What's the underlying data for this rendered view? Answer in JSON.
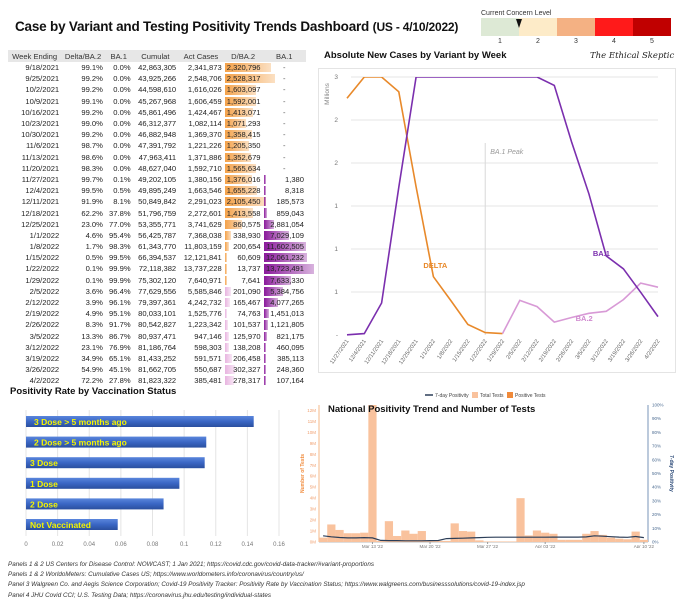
{
  "header": {
    "title": "Case by Variant and Testing Positivity Trends Dashboard",
    "subtitle": "(US - 4/10/2022)"
  },
  "concern_level": {
    "label": "Current Concern Level",
    "levels": [
      "1",
      "2",
      "3",
      "4",
      "5"
    ],
    "colors": [
      "#dde9d5",
      "#fdebc8",
      "#f4b183",
      "#ff1a1a",
      "#c00000"
    ],
    "current_value": 1.5
  },
  "table": {
    "columns": [
      "Week Ending",
      "Delta/BA.2",
      "BA.1",
      "Cumulat",
      "Act Cases",
      "D/BA.2",
      "BA.1"
    ],
    "bar_colors": {
      "delta": "#f4a24a",
      "ba2": "#e8b4e0",
      "ba1": "#8a1a9b"
    },
    "rows": [
      [
        "9/18/2021",
        "99.1%",
        "0.0%",
        "42,863,305",
        "2,341,873",
        "2,320,796",
        "-"
      ],
      [
        "9/25/2021",
        "99.2%",
        "0.0%",
        "43,925,266",
        "2,548,706",
        "2,528,317",
        "-"
      ],
      [
        "10/2/2021",
        "99.2%",
        "0.0%",
        "44,598,610",
        "1,616,026",
        "1,603,097",
        "-"
      ],
      [
        "10/9/2021",
        "99.1%",
        "0.0%",
        "45,267,968",
        "1,606,459",
        "1,592,001",
        "-"
      ],
      [
        "10/16/2021",
        "99.2%",
        "0.0%",
        "45,861,496",
        "1,424,467",
        "1,413,071",
        "-"
      ],
      [
        "10/23/2021",
        "99.0%",
        "0.0%",
        "46,312,377",
        "1,082,114",
        "1,071,293",
        "-"
      ],
      [
        "10/30/2021",
        "99.2%",
        "0.0%",
        "46,882,948",
        "1,369,370",
        "1,358,415",
        "-"
      ],
      [
        "11/6/2021",
        "98.7%",
        "0.0%",
        "47,391,792",
        "1,221,226",
        "1,205,350",
        "-"
      ],
      [
        "11/13/2021",
        "98.6%",
        "0.0%",
        "47,963,411",
        "1,371,886",
        "1,352,679",
        "-"
      ],
      [
        "11/20/2021",
        "98.3%",
        "0.0%",
        "48,627,040",
        "1,592,710",
        "1,565,634",
        "-"
      ],
      [
        "11/27/2021",
        "99.7%",
        "0.1%",
        "49,202,105",
        "1,380,156",
        "1,376,016",
        "1,380"
      ],
      [
        "12/4/2021",
        "99.5%",
        "0.5%",
        "49,895,249",
        "1,663,546",
        "1,655,228",
        "8,318"
      ],
      [
        "12/11/2021",
        "91.9%",
        "8.1%",
        "50,849,842",
        "2,291,023",
        "2,105,450",
        "185,573"
      ],
      [
        "12/18/2021",
        "62.2%",
        "37.8%",
        "51,796,759",
        "2,272,601",
        "1,413,558",
        "859,043"
      ],
      [
        "12/25/2021",
        "23.0%",
        "77.0%",
        "53,355,771",
        "3,741,629",
        "860,575",
        "2,881,054"
      ],
      [
        "1/1/2022",
        "4.6%",
        "95.4%",
        "56,425,787",
        "7,368,038",
        "338,930",
        "7,029,109"
      ],
      [
        "1/8/2022",
        "1.7%",
        "98.3%",
        "61,343,770",
        "11,803,159",
        "200,654",
        "11,602,505"
      ],
      [
        "1/15/2022",
        "0.5%",
        "99.5%",
        "66,394,537",
        "12,121,841",
        "60,609",
        "12,061,232"
      ],
      [
        "1/22/2022",
        "0.1%",
        "99.9%",
        "72,118,382",
        "13,737,228",
        "13,737",
        "13,723,491"
      ],
      [
        "1/29/2022",
        "0.1%",
        "99.9%",
        "75,302,120",
        "7,640,971",
        "7,641",
        "7,633,330"
      ],
      [
        "2/5/2022",
        "3.6%",
        "96.4%",
        "77,629,556",
        "5,585,846",
        "201,090",
        "5,384,756"
      ],
      [
        "2/12/2022",
        "3.9%",
        "96.1%",
        "79,397,361",
        "4,242,732",
        "165,467",
        "4,077,265"
      ],
      [
        "2/19/2022",
        "4.9%",
        "95.1%",
        "80,033,101",
        "1,525,776",
        "74,763",
        "1,451,013"
      ],
      [
        "2/26/2022",
        "8.3%",
        "91.7%",
        "80,542,827",
        "1,223,342",
        "101,537",
        "1,121,805"
      ],
      [
        "3/5/2022",
        "13.3%",
        "86.7%",
        "80,937,471",
        "947,146",
        "125,970",
        "821,175"
      ],
      [
        "3/12/2022",
        "23.1%",
        "76.9%",
        "81,186,764",
        "598,303",
        "138,208",
        "460,095"
      ],
      [
        "3/19/2022",
        "34.9%",
        "65.1%",
        "81,433,252",
        "591,571",
        "206,458",
        "385,113"
      ],
      [
        "3/26/2022",
        "54.9%",
        "45.1%",
        "81,662,705",
        "550,687",
        "302,327",
        "248,360"
      ],
      [
        "4/2/2022",
        "72.2%",
        "27.8%",
        "81,823,322",
        "385,481",
        "278,317",
        "107,164"
      ]
    ]
  },
  "line_panel": {
    "title": "Absolute New Cases by Variant by Week",
    "brand": "The Ethical Skeptic"
  },
  "vax_panel": {
    "title": "Positivity Rate by Vaccination Status"
  },
  "national_panel": {
    "title": "National Positivity Trend and Number of Tests"
  },
  "chart_data": [
    {
      "type": "line",
      "title": "Absolute New Cases by Variant by Week",
      "ylabel": "Millions",
      "ylim": [
        0,
        1.5
      ],
      "yticks": [
        0,
        0.25,
        0.5,
        0.75,
        1.0,
        1.25,
        1.5
      ],
      "ytick_labels": [
        "-",
        "1",
        "1",
        "1",
        "2",
        "2",
        "3"
      ],
      "x": [
        "11/27/2021",
        "12/4/2021",
        "12/11/2021",
        "12/18/2021",
        "12/25/2021",
        "1/1/2022",
        "1/8/2022",
        "1/15/2022",
        "1/22/2022",
        "1/29/2022",
        "2/5/2022",
        "2/12/2022",
        "2/19/2022",
        "2/26/2022",
        "3/5/2022",
        "3/12/2022",
        "3/19/2022",
        "3/26/2022",
        "4/2/2022"
      ],
      "series": [
        {
          "name": "DELTA",
          "color": "#e8892a",
          "values": [
            1.376,
            1.655,
            2.105,
            1.414,
            0.861,
            0.339,
            0.201,
            0.061,
            0.014,
            0.008,
            null,
            null,
            null,
            null,
            null,
            null,
            null,
            null,
            null
          ]
        },
        {
          "name": "BA.2",
          "color": "#d89ad6",
          "values": [
            null,
            null,
            null,
            null,
            null,
            null,
            null,
            null,
            null,
            0.008,
            0.201,
            0.165,
            0.075,
            0.102,
            0.126,
            0.138,
            0.206,
            0.302,
            0.278
          ]
        },
        {
          "name": "BA.1",
          "color": "#7b2fae",
          "values": [
            0.001,
            0.008,
            0.186,
            0.859,
            2.881,
            7.029,
            11.603,
            12.061,
            13.723,
            7.633,
            5.385,
            4.077,
            1.451,
            1.122,
            0.821,
            0.46,
            0.385,
            0.248,
            0.107
          ]
        }
      ],
      "annotations": [
        {
          "text": "BA.1 Peak",
          "x": "1/22/2022"
        }
      ],
      "series_labels": [
        "DELTA",
        "BA.2",
        "BA.1"
      ]
    },
    {
      "type": "bar",
      "orientation": "horizontal",
      "title": "Positivity Rate by Vaccination Status",
      "categories": [
        "3 Dose > 5 months ago",
        "2 Dose > 5 months ago",
        "3 Dose",
        "1 Dose",
        "2 Dose",
        "Not Vaccinated"
      ],
      "values": [
        0.144,
        0.114,
        0.113,
        0.097,
        0.087,
        0.058
      ],
      "xlim": [
        0,
        0.16
      ],
      "xticks": [
        "0",
        "0.02",
        "0.04",
        "0.06",
        "0.08",
        "0.1",
        "0.12",
        "0.14",
        "0.16"
      ],
      "bar_color": "#3a66c4",
      "label_color": "#f5f500"
    },
    {
      "type": "bar",
      "title": "National Positivity Trend and Number of Tests",
      "legend": [
        "7-day Positivity",
        "Total Tests",
        "Positive Tests"
      ],
      "legend_position": "top",
      "ylabel": "Number of Tests",
      "y2label": "7-day Positivity",
      "ylim": [
        0,
        12.5
      ],
      "yticks": [
        "0M",
        "1M",
        "2M",
        "3M",
        "4M",
        "5M",
        "6M",
        "7M",
        "8M",
        "9M",
        "10M",
        "11M",
        "12M"
      ],
      "y2ticks": [
        "0%",
        "10%",
        "20%",
        "30%",
        "40%",
        "50%",
        "60%",
        "70%",
        "80%",
        "90%",
        "100%"
      ],
      "xticks": [
        "Mar 13 '22",
        "Mar 20 '22",
        "Mar 27 '22",
        "Apr 03 '22",
        "Apr 10 '22"
      ],
      "total_tests_millions": [
        0.4,
        1.6,
        1.1,
        0.8,
        0.8,
        0.85,
        12.5,
        0.1,
        1.9,
        0.55,
        1.05,
        0.75,
        1.0,
        0.1,
        0.1,
        0.1,
        1.7,
        1.0,
        0.95,
        0.15,
        0.05,
        0.05,
        0.05,
        0.05,
        4.0,
        0.6,
        1.05,
        0.85,
        0.75,
        0.2,
        0.2,
        0.2,
        0.75,
        1.0,
        0.65,
        0.4,
        0.3,
        0.25,
        0.95,
        0.2
      ],
      "positivity_pct": [
        4.5,
        3.8,
        3.3,
        3.0,
        3.0,
        3.2,
        3.0,
        1.2,
        1.0,
        1.0,
        0.9,
        0.9,
        0.9,
        1.0,
        1.1,
        2.5,
        2.6,
        2.8,
        3.0,
        3.2,
        3.4,
        3.5,
        3.5,
        3.5,
        3.5,
        3.5,
        3.5,
        3.5,
        3.6,
        3.6,
        3.6,
        3.6,
        3.7,
        4.5,
        4.2,
        3.9,
        3.6,
        3.4,
        4.0,
        3.2
      ],
      "colors": {
        "total": "#f9c29d",
        "positive": "#f08a3a",
        "positivity": "#2c3e58"
      }
    }
  ],
  "sources": [
    "Panels 1 & 2   US Centers for Disease Control: NOWCAST; 1 Jan 2021; https://covid.cdc.gov/covid-data-tracker/#variant-proportions",
    "Panels 1 & 2   WorldoMeters: Cumulative Cases US; https://www.worldometers.info/coronavirus/country/us/",
    "Panel 3   Walgreen Co. and Aegis Science Corporation; Covid-19 Positivity Tracker: Positivity Rate by Vaccination Status; https://www.walgreens.com/businesssolutions/covid-19-index.jsp",
    "Panel 4   JHU Covid CCI; U.S. Testing Data; https://coronavirus.jhu.edu/testing/individual-states"
  ]
}
